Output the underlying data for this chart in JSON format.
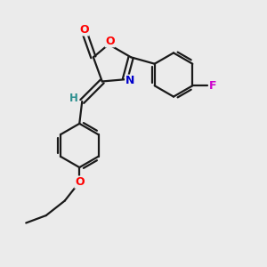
{
  "bg_color": "#ebebeb",
  "bond_color": "#1a1a1a",
  "atom_colors": {
    "O": "#ff0000",
    "N": "#0000cc",
    "F": "#cc00cc",
    "H": "#2d9090",
    "C": "#1a1a1a"
  },
  "fig_size": [
    3.0,
    3.0
  ],
  "dpi": 100,
  "xlim": [
    0,
    10
  ],
  "ylim": [
    0,
    10
  ]
}
